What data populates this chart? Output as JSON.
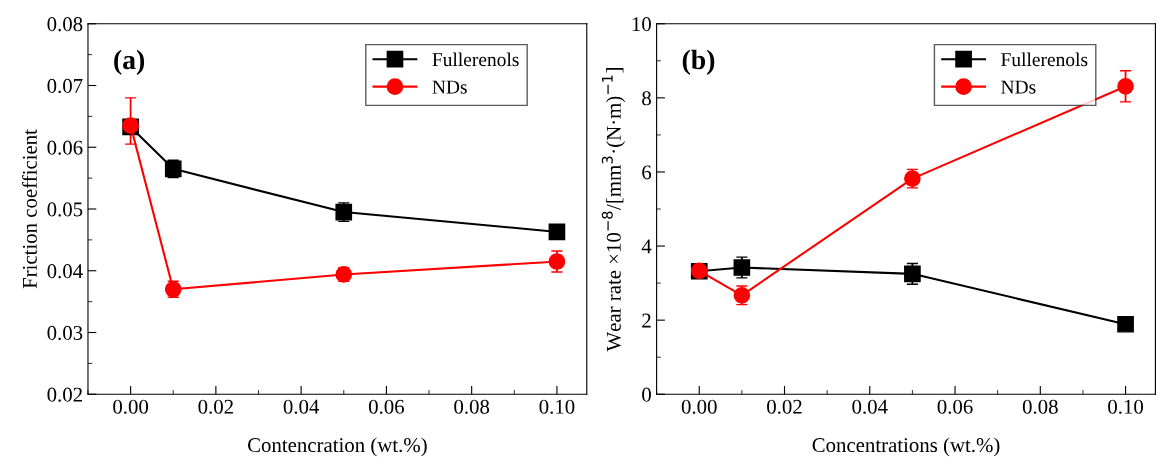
{
  "chart_data": [
    {
      "type": "line",
      "annotations": [
        "(a)"
      ],
      "xlabel": "Contencration (wt.%)",
      "ylabel": "Friction coefficient",
      "x": [
        0,
        0.01,
        0.05,
        0.1
      ],
      "xlim": [
        -0.01,
        0.107
      ],
      "xticks": [
        {
          "value": 0,
          "label": "0.00"
        },
        {
          "value": 0.02,
          "label": "0.02"
        },
        {
          "value": 0.04,
          "label": "0.04"
        },
        {
          "value": 0.06,
          "label": "0.06"
        },
        {
          "value": 0.08,
          "label": "0.08"
        },
        {
          "value": 0.1,
          "label": "0.10"
        }
      ],
      "ylim": [
        0.02,
        0.08
      ],
      "yticks": [
        {
          "value": 0.02,
          "label": "0.02"
        },
        {
          "value": 0.03,
          "label": "0.03"
        },
        {
          "value": 0.04,
          "label": "0.04"
        },
        {
          "value": 0.05,
          "label": "0.05"
        },
        {
          "value": 0.06,
          "label": "0.06"
        },
        {
          "value": 0.07,
          "label": "0.07"
        },
        {
          "value": 0.08,
          "label": "0.08"
        }
      ],
      "legend": "top right",
      "grid": false,
      "series": [
        {
          "name": "Fullerenols",
          "color": "#000000",
          "marker": "square",
          "values": [
            0.0633,
            0.0565,
            0.0495,
            0.0463
          ],
          "errors": [
            null,
            0.0014,
            0.0015,
            0.0008
          ]
        },
        {
          "name": "NDs",
          "color": "#ff0000",
          "marker": "circle",
          "values": [
            0.0635,
            0.037,
            0.0394,
            0.0415
          ],
          "errors": [
            [
              0.0605,
              0.068
            ],
            0.0013,
            0.0011,
            0.0017
          ]
        }
      ]
    },
    {
      "type": "line",
      "annotations": [
        "(b)"
      ],
      "xlabel": "Concentrations (wt.%)",
      "ylabel": "Wear rate ×10$^{−8}$/[mm$^{3}$·(N·m)$^{−1}$]",
      "x": [
        0,
        0.01,
        0.05,
        0.1
      ],
      "xlim": [
        -0.01,
        0.107
      ],
      "xticks": [
        {
          "value": 0,
          "label": "0.00"
        },
        {
          "value": 0.02,
          "label": "0.02"
        },
        {
          "value": 0.04,
          "label": "0.04"
        },
        {
          "value": 0.06,
          "label": "0.06"
        },
        {
          "value": 0.08,
          "label": "0.08"
        },
        {
          "value": 0.1,
          "label": "0.10"
        }
      ],
      "ylim": [
        0,
        10
      ],
      "yticks": [
        0,
        2,
        4,
        6,
        8,
        10
      ],
      "legend": "top right",
      "grid": false,
      "series": [
        {
          "name": "Fullerenols",
          "color": "#000000",
          "marker": "square",
          "values": [
            3.32,
            3.42,
            3.25,
            1.89
          ],
          "errors": [
            null,
            0.28,
            0.28,
            0.1
          ]
        },
        {
          "name": "NDs",
          "color": "#ff0000",
          "marker": "circle",
          "values": [
            3.33,
            2.67,
            5.82,
            8.31
          ],
          "errors": [
            null,
            0.25,
            0.25,
            0.42
          ]
        }
      ]
    }
  ]
}
